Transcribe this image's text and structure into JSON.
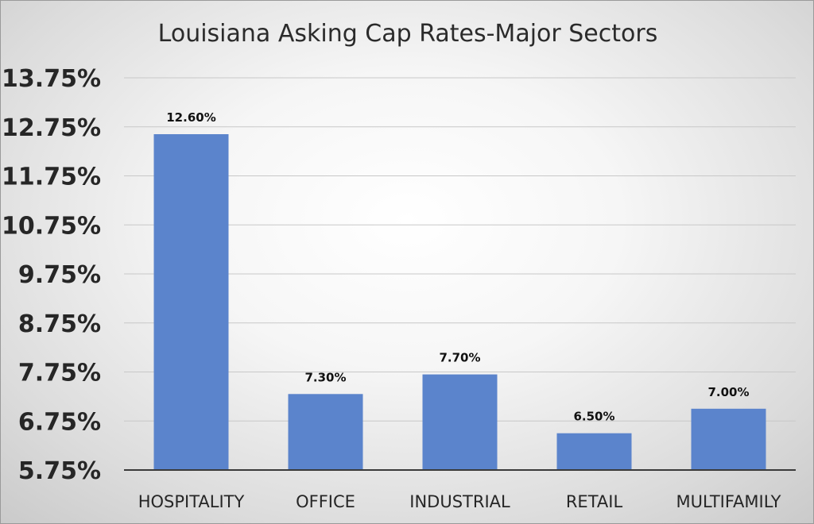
{
  "chart_data": {
    "type": "bar",
    "title": "Louisiana Asking Cap Rates-Major Sectors",
    "xlabel": "",
    "ylabel": "",
    "categories": [
      "HOSPITALITY",
      "OFFICE",
      "INDUSTRIAL",
      "RETAIL",
      "MULTIFAMILY"
    ],
    "values": [
      12.6,
      7.3,
      7.7,
      6.5,
      7.0
    ],
    "value_labels": [
      "12.60%",
      "7.30%",
      "7.70%",
      "6.50%",
      "7.00%"
    ],
    "ylim": [
      5.75,
      13.75
    ],
    "yticks": [
      5.75,
      6.75,
      7.75,
      8.75,
      9.75,
      10.75,
      11.75,
      12.75,
      13.75
    ],
    "ytick_labels": [
      "5.75%",
      "6.75%",
      "7.75%",
      "8.75%",
      "9.75%",
      "10.75%",
      "11.75%",
      "12.75%",
      "13.75%"
    ],
    "grid": true,
    "legend": "none",
    "bar_color": "#5b84cc"
  }
}
